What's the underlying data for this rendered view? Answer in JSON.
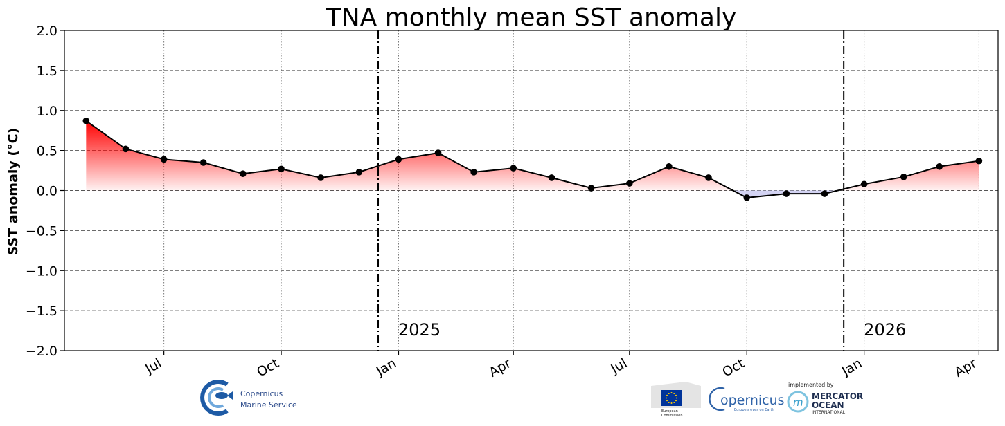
{
  "chart_data": {
    "type": "line",
    "title": "TNA monthly mean SST anomaly",
    "ylabel": "SST anomaly (°C)",
    "xlabel": "",
    "ylim": [
      -2.0,
      2.0
    ],
    "xlim": [
      "2024-04-14",
      "2026-04-16"
    ],
    "yticks": [
      -2.0,
      -1.5,
      -1.0,
      -0.5,
      0.0,
      0.5,
      1.0,
      1.5,
      2.0
    ],
    "ytick_labels": [
      "−2.0",
      "−1.5",
      "−1.0",
      "−0.5",
      "0.0",
      "0.5",
      "1.0",
      "1.5",
      "2.0"
    ],
    "xticks": [
      {
        "date": "2024-07-01",
        "label": "Jul"
      },
      {
        "date": "2024-10-01",
        "label": "Oct"
      },
      {
        "date": "2025-01-01",
        "label": "Jan"
      },
      {
        "date": "2025-04-01",
        "label": "Apr"
      },
      {
        "date": "2025-07-01",
        "label": "Jul"
      },
      {
        "date": "2025-10-01",
        "label": "Oct"
      },
      {
        "date": "2026-01-01",
        "label": "Jan"
      },
      {
        "date": "2026-04-01",
        "label": "Apr"
      }
    ],
    "year_markers": [
      {
        "date": "2024-12-16",
        "label": "2025"
      },
      {
        "date": "2025-12-16",
        "label": "2026"
      }
    ],
    "grid": true,
    "series": [
      {
        "x": [
          "2024-05-01",
          "2024-06-01",
          "2024-07-01",
          "2024-08-01",
          "2024-09-01",
          "2024-10-01",
          "2024-11-01",
          "2024-12-01",
          "2025-01-01",
          "2025-02-01",
          "2025-03-01",
          "2025-04-01",
          "2025-05-01",
          "2025-06-01",
          "2025-07-01",
          "2025-08-01",
          "2025-09-01",
          "2025-10-01",
          "2025-11-01",
          "2025-12-01",
          "2026-01-01",
          "2026-02-01",
          "2026-03-01",
          "2026-04-01"
        ],
        "values": [
          0.87,
          0.52,
          0.39,
          0.35,
          0.21,
          0.27,
          0.16,
          0.23,
          0.39,
          0.47,
          0.23,
          0.28,
          0.16,
          0.03,
          0.09,
          0.3,
          0.16,
          -0.09,
          -0.04,
          -0.04,
          0.08,
          0.17,
          0.3,
          0.37
        ]
      }
    ],
    "colors": {
      "line": "#000000",
      "positive_fill": "#ff0000",
      "negative_fill": "#c8c8f0"
    }
  },
  "logos": {
    "cms_line1": "Copernicus",
    "cms_line2": "Marine Service",
    "copernicus": "opernicus",
    "copernicus_tagline": "Europe's eyes on Earth",
    "implemented_by": "implemented by",
    "mercator_line1": "MERCATOR",
    "mercator_line2": "OCEAN",
    "mercator_line3": "INTERNATIONAL",
    "ec_line1": "European",
    "ec_line2": "Commission"
  }
}
